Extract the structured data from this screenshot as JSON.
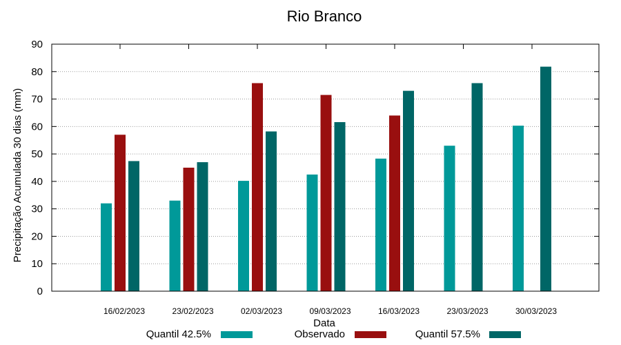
{
  "chart_data": {
    "type": "bar",
    "title": "Rio Branco",
    "xlabel": "Data",
    "ylabel": "Precipitação Acumulada 30 dias (mm)",
    "ylim": [
      0,
      90
    ],
    "yticks": [
      0,
      10,
      20,
      30,
      40,
      50,
      60,
      70,
      80,
      90
    ],
    "grid": true,
    "categories": [
      "16/02/2023",
      "23/02/2023",
      "02/03/2023",
      "09/03/2023",
      "16/03/2023",
      "23/03/2023",
      "30/03/2023"
    ],
    "series": [
      {
        "name": "Quantil 42.5%",
        "color": "#009999",
        "values": [
          32,
          33,
          40.2,
          42.5,
          48.3,
          53,
          60.3
        ]
      },
      {
        "name": "Observado",
        "color": "#990f0f",
        "values": [
          57,
          45,
          75.8,
          71.5,
          64,
          null,
          null
        ]
      },
      {
        "name": "Quantil 57.5%",
        "color": "#006666",
        "values": [
          47.4,
          47,
          58.2,
          61.6,
          73,
          75.8,
          81.8
        ]
      }
    ],
    "legend_position": "bottom"
  }
}
